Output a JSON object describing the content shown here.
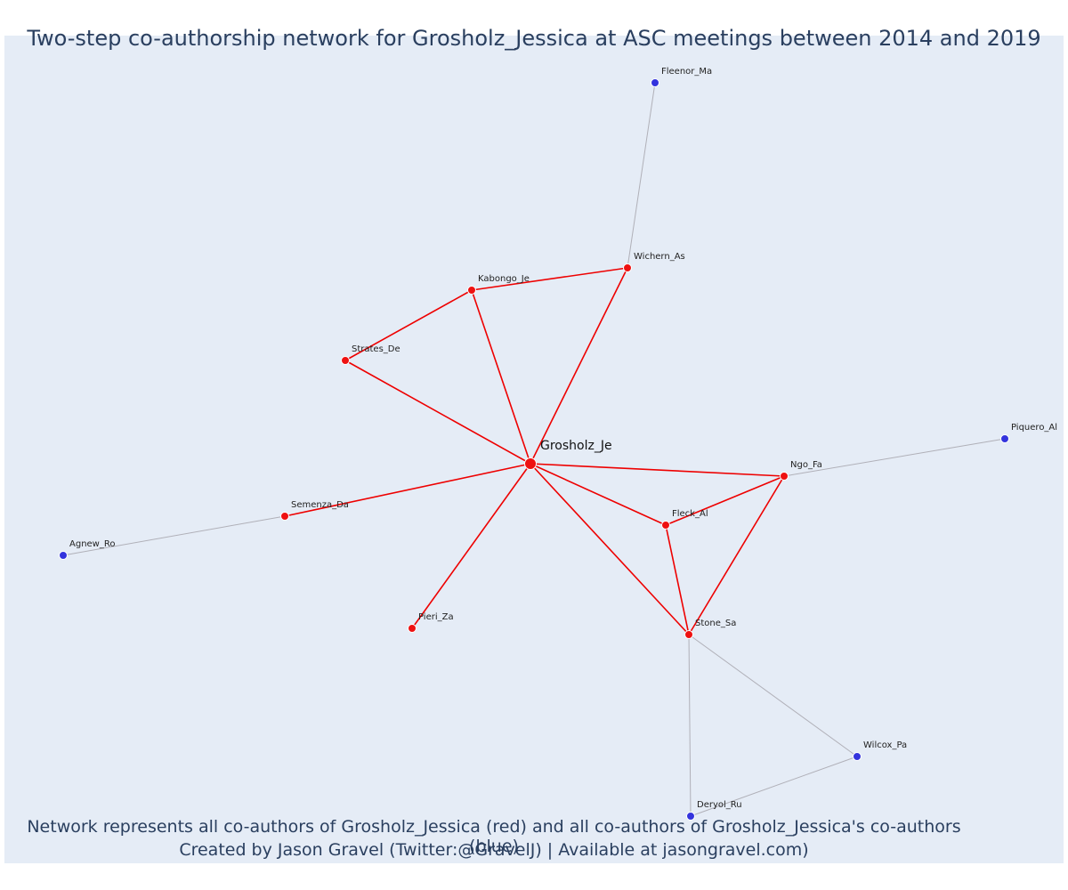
{
  "title": "Two-step co-authorship network for Grosholz_Jessica at ASC meetings between 2014 and 2019",
  "caption_line1": "Network represents all co-authors of Grosholz_Jessica (red) and all co-authors of Grosholz_Jessica's co-authors (blue)",
  "caption_line2": "Created by Jason Gravel (Twitter:@GravelJ) | Available at jasongravel.com)",
  "colors": {
    "background": "#e5ecf6",
    "first_degree": "#ee1111",
    "second_degree": "#3333dd",
    "first_degree_edge": "#ee0000",
    "second_degree_edge": "#b0b0b8"
  },
  "nodes": [
    {
      "id": "Grosholz_Je",
      "degree": 0
    },
    {
      "id": "Fleenor_Ma",
      "degree": 2
    },
    {
      "id": "Wichern_As",
      "degree": 1
    },
    {
      "id": "Kabongo_Je",
      "degree": 1
    },
    {
      "id": "Strates_De",
      "degree": 1
    },
    {
      "id": "Piquero_Al",
      "degree": 2
    },
    {
      "id": "Ngo_Fa",
      "degree": 1
    },
    {
      "id": "Fleck_Al",
      "degree": 1
    },
    {
      "id": "Semenza_Da",
      "degree": 1
    },
    {
      "id": "Agnew_Ro",
      "degree": 2
    },
    {
      "id": "Pieri_Za",
      "degree": 1
    },
    {
      "id": "Stone_Sa",
      "degree": 1
    },
    {
      "id": "Wilcox_Pa",
      "degree": 2
    },
    {
      "id": "Deryol_Ru",
      "degree": 2
    }
  ],
  "edges": [
    {
      "source": "Grosholz_Je",
      "target": "Wichern_As",
      "type": "first"
    },
    {
      "source": "Grosholz_Je",
      "target": "Kabongo_Je",
      "type": "first"
    },
    {
      "source": "Grosholz_Je",
      "target": "Strates_De",
      "type": "first"
    },
    {
      "source": "Grosholz_Je",
      "target": "Ngo_Fa",
      "type": "first"
    },
    {
      "source": "Grosholz_Je",
      "target": "Fleck_Al",
      "type": "first"
    },
    {
      "source": "Grosholz_Je",
      "target": "Semenza_Da",
      "type": "first"
    },
    {
      "source": "Grosholz_Je",
      "target": "Pieri_Za",
      "type": "first"
    },
    {
      "source": "Grosholz_Je",
      "target": "Stone_Sa",
      "type": "first"
    },
    {
      "source": "Kabongo_Je",
      "target": "Wichern_As",
      "type": "first"
    },
    {
      "source": "Kabongo_Je",
      "target": "Strates_De",
      "type": "first"
    },
    {
      "source": "Fleck_Al",
      "target": "Ngo_Fa",
      "type": "first"
    },
    {
      "source": "Fleck_Al",
      "target": "Stone_Sa",
      "type": "first"
    },
    {
      "source": "Ngo_Fa",
      "target": "Stone_Sa",
      "type": "first"
    },
    {
      "source": "Wichern_As",
      "target": "Fleenor_Ma",
      "type": "second"
    },
    {
      "source": "Ngo_Fa",
      "target": "Piquero_Al",
      "type": "second"
    },
    {
      "source": "Semenza_Da",
      "target": "Agnew_Ro",
      "type": "second"
    },
    {
      "source": "Stone_Sa",
      "target": "Wilcox_Pa",
      "type": "second"
    },
    {
      "source": "Stone_Sa",
      "target": "Deryol_Ru",
      "type": "second"
    },
    {
      "source": "Wilcox_Pa",
      "target": "Deryol_Ru",
      "type": "second"
    }
  ]
}
